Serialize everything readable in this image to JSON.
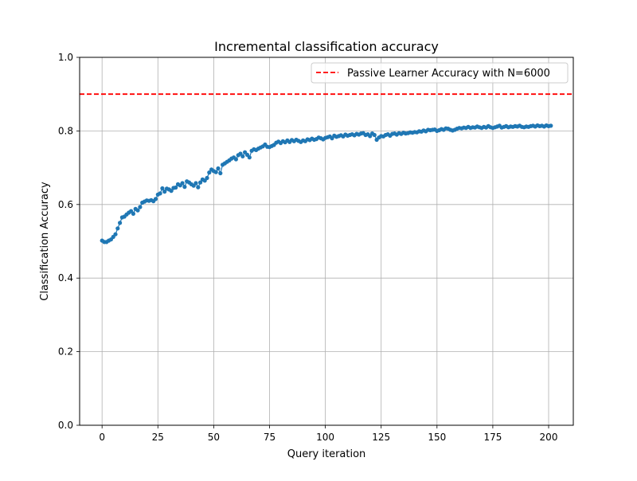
{
  "chart_data": {
    "type": "scatter",
    "title": "Incremental classification accuracy",
    "xlabel": "Query iteration",
    "ylabel": "Classification Accuracy",
    "xlim": [
      -10.05,
      211.05
    ],
    "ylim": [
      0.0,
      1.0
    ],
    "xticks": [
      0,
      25,
      50,
      75,
      100,
      125,
      150,
      175,
      200
    ],
    "yticks": [
      0.0,
      0.2,
      0.4,
      0.6,
      0.8,
      1.0
    ],
    "xtick_labels": [
      "0",
      "25",
      "50",
      "75",
      "100",
      "125",
      "150",
      "175",
      "200"
    ],
    "ytick_labels": [
      "0.0",
      "0.2",
      "0.4",
      "0.6",
      "0.8",
      "1.0"
    ],
    "grid": true,
    "legend_position": "top-right",
    "reference_line": {
      "label": "Passive Learner Accuracy with N=6000",
      "y": 0.9,
      "color": "#ff0000",
      "style": "dashed"
    },
    "series": [
      {
        "color": "#1f77b4",
        "marker": "circle",
        "line": true,
        "x": [
          0,
          1,
          2,
          3,
          4,
          5,
          6,
          7,
          8,
          9,
          10,
          11,
          12,
          13,
          14,
          15,
          16,
          17,
          18,
          19,
          20,
          21,
          22,
          23,
          24,
          25,
          26,
          27,
          28,
          29,
          30,
          31,
          32,
          33,
          34,
          35,
          36,
          37,
          38,
          39,
          40,
          41,
          42,
          43,
          44,
          45,
          46,
          47,
          48,
          49,
          50,
          51,
          52,
          53,
          54,
          55,
          56,
          57,
          58,
          59,
          60,
          61,
          62,
          63,
          64,
          65,
          66,
          67,
          68,
          69,
          70,
          71,
          72,
          73,
          74,
          75,
          76,
          77,
          78,
          79,
          80,
          81,
          82,
          83,
          84,
          85,
          86,
          87,
          88,
          89,
          90,
          91,
          92,
          93,
          94,
          95,
          96,
          97,
          98,
          99,
          100,
          101,
          102,
          103,
          104,
          105,
          106,
          107,
          108,
          109,
          110,
          111,
          112,
          113,
          114,
          115,
          116,
          117,
          118,
          119,
          120,
          121,
          122,
          123,
          124,
          125,
          126,
          127,
          128,
          129,
          130,
          131,
          132,
          133,
          134,
          135,
          136,
          137,
          138,
          139,
          140,
          141,
          142,
          143,
          144,
          145,
          146,
          147,
          148,
          149,
          150,
          151,
          152,
          153,
          154,
          155,
          156,
          157,
          158,
          159,
          160,
          161,
          162,
          163,
          164,
          165,
          166,
          167,
          168,
          169,
          170,
          171,
          172,
          173,
          174,
          175,
          176,
          177,
          178,
          179,
          180,
          181,
          182,
          183,
          184,
          185,
          186,
          187,
          188,
          189,
          190,
          191,
          192,
          193,
          194,
          195,
          196,
          197,
          198,
          199,
          200,
          201
        ],
        "y": [
          0.502,
          0.498,
          0.498,
          0.502,
          0.505,
          0.512,
          0.519,
          0.535,
          0.55,
          0.565,
          0.567,
          0.573,
          0.578,
          0.582,
          0.575,
          0.588,
          0.584,
          0.593,
          0.605,
          0.608,
          0.611,
          0.61,
          0.612,
          0.609,
          0.615,
          0.627,
          0.63,
          0.644,
          0.635,
          0.643,
          0.641,
          0.637,
          0.645,
          0.646,
          0.655,
          0.652,
          0.658,
          0.648,
          0.663,
          0.66,
          0.655,
          0.651,
          0.658,
          0.647,
          0.66,
          0.668,
          0.665,
          0.672,
          0.687,
          0.695,
          0.691,
          0.688,
          0.698,
          0.685,
          0.708,
          0.712,
          0.716,
          0.72,
          0.725,
          0.728,
          0.723,
          0.734,
          0.738,
          0.731,
          0.742,
          0.735,
          0.728,
          0.746,
          0.75,
          0.748,
          0.752,
          0.755,
          0.758,
          0.763,
          0.757,
          0.756,
          0.759,
          0.762,
          0.768,
          0.771,
          0.767,
          0.772,
          0.769,
          0.774,
          0.77,
          0.775,
          0.772,
          0.776,
          0.773,
          0.77,
          0.774,
          0.772,
          0.777,
          0.775,
          0.779,
          0.776,
          0.778,
          0.782,
          0.78,
          0.777,
          0.781,
          0.783,
          0.785,
          0.78,
          0.787,
          0.784,
          0.786,
          0.788,
          0.785,
          0.79,
          0.787,
          0.789,
          0.791,
          0.788,
          0.792,
          0.79,
          0.793,
          0.794,
          0.789,
          0.791,
          0.786,
          0.793,
          0.789,
          0.776,
          0.782,
          0.786,
          0.785,
          0.789,
          0.791,
          0.787,
          0.792,
          0.793,
          0.79,
          0.794,
          0.792,
          0.795,
          0.793,
          0.794,
          0.796,
          0.795,
          0.797,
          0.796,
          0.799,
          0.798,
          0.801,
          0.799,
          0.803,
          0.802,
          0.803,
          0.804,
          0.8,
          0.802,
          0.805,
          0.803,
          0.807,
          0.806,
          0.803,
          0.801,
          0.803,
          0.806,
          0.808,
          0.807,
          0.809,
          0.808,
          0.811,
          0.808,
          0.81,
          0.809,
          0.812,
          0.81,
          0.808,
          0.811,
          0.809,
          0.813,
          0.81,
          0.808,
          0.81,
          0.812,
          0.814,
          0.809,
          0.811,
          0.813,
          0.81,
          0.812,
          0.811,
          0.813,
          0.812,
          0.814,
          0.811,
          0.81,
          0.812,
          0.811,
          0.813,
          0.814,
          0.812,
          0.815,
          0.813,
          0.814,
          0.812,
          0.815,
          0.813,
          0.814
        ]
      }
    ]
  }
}
